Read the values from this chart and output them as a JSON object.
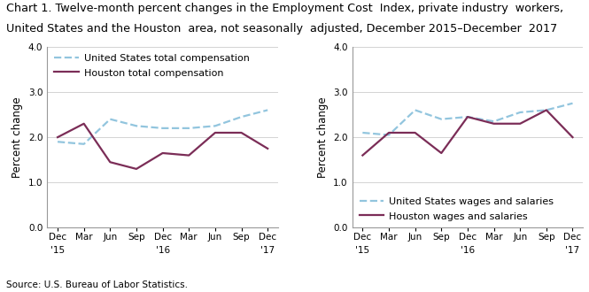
{
  "title_line1": "Chart 1. Twelve-month percent changes in the Employment Cost  Index, private industry  workers,",
  "title_line2": "United States and the Houston  area, not seasonally  adjusted, December 2015–December  2017",
  "source": "Source: U.S. Bureau of Labor Statistics.",
  "x_labels_top": [
    "Dec",
    "Mar",
    "Jun",
    "Sep",
    "Dec",
    "Mar",
    "Jun",
    "Sep",
    "Dec"
  ],
  "x_labels_year": [
    "'15",
    "",
    "",
    "",
    "'16",
    "",
    "",
    "",
    "'17"
  ],
  "left_ylabel": "Percent change",
  "right_ylabel": "Percent change",
  "ylim": [
    0.0,
    4.0
  ],
  "yticks": [
    0.0,
    1.0,
    2.0,
    3.0,
    4.0
  ],
  "left_us": [
    1.9,
    1.85,
    2.4,
    2.25,
    2.2,
    2.2,
    2.25,
    2.45,
    2.6
  ],
  "left_houston": [
    2.0,
    2.3,
    1.45,
    1.3,
    1.65,
    1.6,
    2.1,
    2.1,
    1.75
  ],
  "right_us": [
    2.1,
    2.05,
    2.6,
    2.4,
    2.45,
    2.35,
    2.55,
    2.6,
    2.75
  ],
  "right_houston": [
    1.6,
    2.1,
    2.1,
    1.65,
    2.45,
    2.3,
    2.3,
    2.6,
    2.0
  ],
  "us_color": "#92c5de",
  "houston_color": "#7b2d57",
  "us_linestyle": "--",
  "houston_linestyle": "-",
  "linewidth": 1.6,
  "left_legend_labels": [
    "United States total compensation",
    "Houston total compensation"
  ],
  "right_legend_labels": [
    "United States wages and salaries",
    "Houston wages and salaries"
  ],
  "title_fontsize": 9.2,
  "label_fontsize": 8.5,
  "tick_fontsize": 7.5,
  "legend_fontsize": 8.0,
  "source_fontsize": 7.5
}
